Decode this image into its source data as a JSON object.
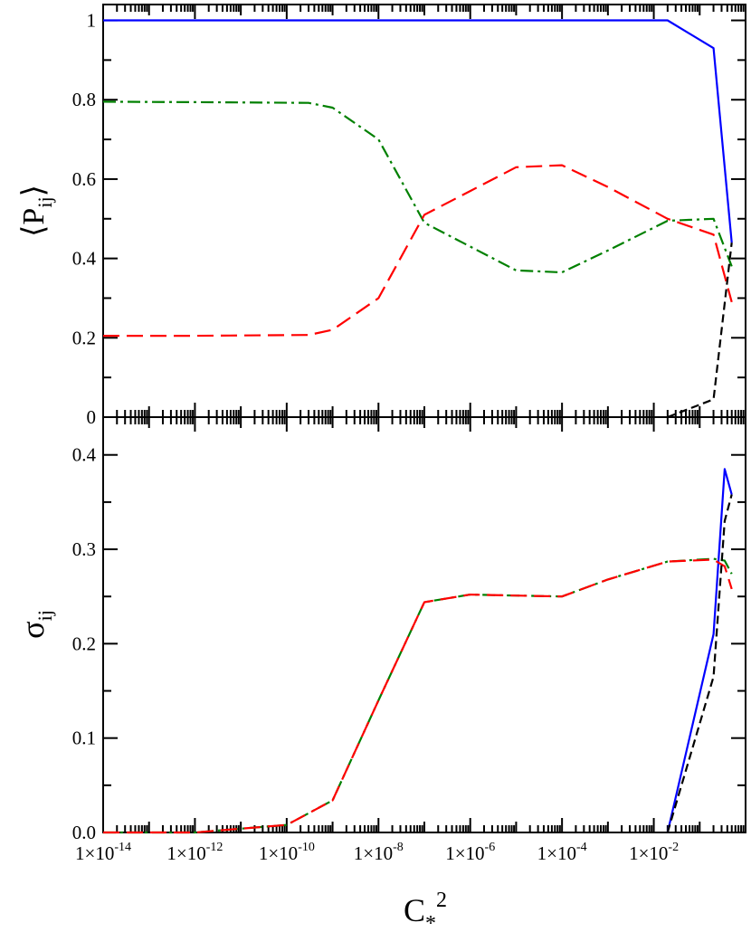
{
  "chart_data": [
    {
      "type": "line",
      "panel": "top",
      "ylabel": "⟨P",
      "ylabel_sub": "ij",
      "ylabel_close": "⟩",
      "xscale": "log",
      "xlim": [
        1e-14,
        1
      ],
      "ylim": [
        0,
        1.04
      ],
      "yticks": [
        0,
        0.2,
        0.4,
        0.6,
        0.8,
        1
      ],
      "ytick_labels": [
        "0",
        "0.2",
        "0.4",
        "0.6",
        "0.8",
        "1"
      ],
      "series": [
        {
          "color": "#0000ff",
          "dash": "solid",
          "x": [
            1e-14,
            1e-12,
            1e-10,
            1e-08,
            1e-06,
            0.0001,
            0.02,
            0.2,
            0.5
          ],
          "y": [
            1,
            1,
            1,
            1,
            1,
            1,
            1,
            0.93,
            0.44
          ]
        },
        {
          "color": "#008000",
          "dash": "dashdot",
          "x": [
            1e-14,
            1e-12,
            3e-10,
            1e-09,
            1e-08,
            1e-07,
            1e-06,
            1e-05,
            0.0001,
            0.001,
            0.02,
            0.2,
            0.5
          ],
          "y": [
            0.795,
            0.794,
            0.792,
            0.78,
            0.7,
            0.49,
            0.43,
            0.37,
            0.365,
            0.42,
            0.495,
            0.5,
            0.38
          ]
        },
        {
          "color": "#ff0000",
          "dash": "dash",
          "x": [
            1e-14,
            1e-12,
            3e-10,
            1e-09,
            1e-08,
            1e-07,
            1e-06,
            1e-05,
            0.0001,
            0.001,
            0.02,
            0.2,
            0.5
          ],
          "y": [
            0.205,
            0.205,
            0.207,
            0.22,
            0.3,
            0.51,
            0.57,
            0.63,
            0.635,
            0.58,
            0.5,
            0.46,
            0.29
          ]
        },
        {
          "color": "#000000",
          "dash": "shortdash",
          "x": [
            0.02,
            0.2,
            0.5
          ],
          "y": [
            0.0,
            0.045,
            0.44
          ]
        }
      ]
    },
    {
      "type": "line",
      "panel": "bottom",
      "ylabel": "σ",
      "ylabel_sub": "ij",
      "xlabel": "C",
      "xlabel_sub": "*",
      "xlabel_sup": "2",
      "xscale": "log",
      "xlim": [
        1e-14,
        1
      ],
      "ylim": [
        0,
        0.44
      ],
      "xticks": [
        1e-14,
        1e-12,
        1e-10,
        1e-08,
        1e-06,
        0.0001,
        0.01
      ],
      "xtick_labels": [
        {
          "base": "1×10",
          "exp": "-14"
        },
        {
          "base": "1×10",
          "exp": "-12"
        },
        {
          "base": "1×10",
          "exp": "-10"
        },
        {
          "base": "1×10",
          "exp": "-8"
        },
        {
          "base": "1×10",
          "exp": "-6"
        },
        {
          "base": "1×10",
          "exp": "-4"
        },
        {
          "base": "1×10",
          "exp": "-2"
        }
      ],
      "yticks": [
        0,
        0.1,
        0.2,
        0.3,
        0.4
      ],
      "ytick_labels": [
        "0.0",
        "0.1",
        "0.2",
        "0.3",
        "0.4"
      ],
      "series": [
        {
          "color": "#0000ff",
          "dash": "solid",
          "x": [
            0.02,
            0.2,
            0.35,
            0.5
          ],
          "y": [
            0.0,
            0.21,
            0.385,
            0.358
          ]
        },
        {
          "color": "#008000",
          "dash": "dashdot",
          "x": [
            1e-14,
            1e-12,
            1e-11,
            1e-10,
            1e-09,
            1e-08,
            1e-07,
            1e-06,
            1e-05,
            0.0001,
            0.001,
            0.02,
            0.2,
            0.35,
            0.5
          ],
          "y": [
            0,
            0,
            0.004,
            0.008,
            0.034,
            0.14,
            0.244,
            0.252,
            0.251,
            0.25,
            0.268,
            0.287,
            0.29,
            0.288,
            0.274
          ]
        },
        {
          "color": "#ff0000",
          "dash": "dash",
          "x": [
            1e-14,
            1e-12,
            1e-11,
            1e-10,
            1e-09,
            1e-08,
            1e-07,
            1e-06,
            1e-05,
            0.0001,
            0.001,
            0.02,
            0.2,
            0.35,
            0.5
          ],
          "y": [
            0,
            0,
            0.004,
            0.008,
            0.034,
            0.14,
            0.244,
            0.252,
            0.251,
            0.25,
            0.268,
            0.287,
            0.289,
            0.282,
            0.258
          ]
        },
        {
          "color": "#000000",
          "dash": "shortdash",
          "x": [
            0.02,
            0.2,
            0.35,
            0.5
          ],
          "y": [
            0.0,
            0.165,
            0.33,
            0.358
          ]
        }
      ]
    }
  ]
}
